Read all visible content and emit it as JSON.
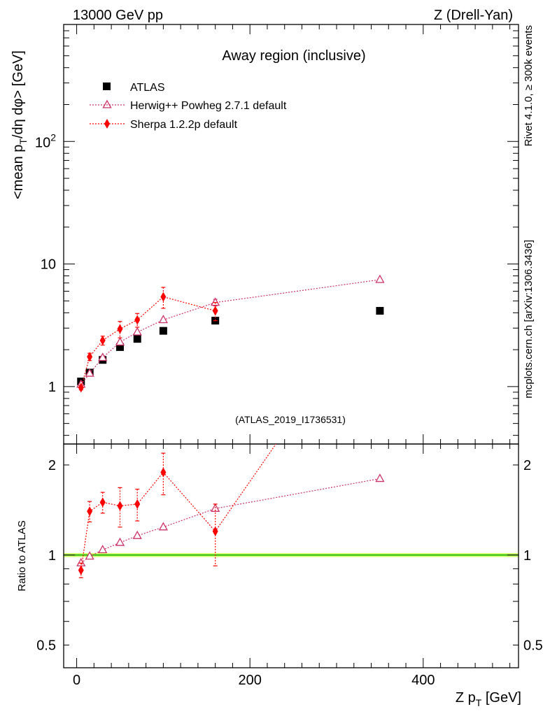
{
  "header": {
    "left": "13000 GeV pp",
    "right": "Z (Drell-Yan)"
  },
  "side_text": {
    "rivet": "Rivet 4.1.0, ≥ 300k events",
    "mcplots": "mcplots.cern.ch [arXiv:1306.3436]"
  },
  "colors": {
    "atlas": "#000000",
    "herwig": "#cc3366",
    "sherpa": "#ff0000",
    "ref_band": "#ccff66",
    "ref_line": "#00aa00",
    "label_gray": "#888888"
  },
  "chart_data": [
    {
      "id": "main",
      "type": "scatter",
      "title": "Away region (inclusive)",
      "watermark": "(ATLAS_2019_I1736531)",
      "ylabel": "<mean p_T/dη dφ> [GeV]",
      "yscale": "log",
      "xlim": [
        -15,
        510
      ],
      "ylim": [
        0.34,
        900
      ],
      "yticks": [
        {
          "value": 1,
          "label": "1"
        },
        {
          "value": 10,
          "label": "10"
        },
        {
          "value": 100,
          "label": "10^2"
        }
      ],
      "series": [
        {
          "name": "ATLAS",
          "marker": "square",
          "color": "#000000",
          "connect": false,
          "x": [
            5,
            15,
            30,
            50,
            70,
            100,
            160,
            350
          ],
          "y": [
            1.1,
            1.3,
            1.65,
            2.1,
            2.45,
            2.85,
            3.45,
            4.15
          ],
          "err": [
            0,
            0,
            0,
            0,
            0,
            0,
            0,
            0
          ]
        },
        {
          "name": "Herwig++ Powheg 2.7.1 default",
          "marker": "triangle",
          "color": "#cc3366",
          "connect": true,
          "x": [
            5,
            15,
            30,
            50,
            70,
            100,
            160,
            350
          ],
          "y": [
            1.04,
            1.28,
            1.72,
            2.3,
            2.78,
            3.5,
            4.85,
            7.45
          ],
          "err": [
            0,
            0,
            0,
            0,
            0,
            0,
            0.3,
            0
          ]
        },
        {
          "name": "Sherpa 1.2.2p default",
          "marker": "diamond",
          "color": "#ff0000",
          "connect": true,
          "x": [
            5,
            15,
            30,
            50,
            70,
            100,
            160
          ],
          "y": [
            0.98,
            1.75,
            2.38,
            2.95,
            3.5,
            5.4,
            4.15
          ],
          "err": [
            0.04,
            0.12,
            0.2,
            0.45,
            0.45,
            1.05,
            0.7
          ]
        }
      ]
    },
    {
      "id": "ratio",
      "type": "scatter",
      "ylabel": "Ratio to ATLAS",
      "xlabel": "Z p_T [GeV]",
      "yscale": "log",
      "xlim": [
        -15,
        510
      ],
      "ylim": [
        0.42,
        2.35
      ],
      "xticks": [
        {
          "value": 0,
          "label": "0"
        },
        {
          "value": 200,
          "label": "200"
        },
        {
          "value": 400,
          "label": "400"
        }
      ],
      "yticks": [
        {
          "value": 0.5,
          "label": "0.5"
        },
        {
          "value": 1,
          "label": "1"
        },
        {
          "value": 2,
          "label": "2"
        }
      ],
      "reference": {
        "value": 1.0,
        "band": [
          0.985,
          1.015
        ]
      },
      "series": [
        {
          "name": "Herwig++ Powheg 2.7.1 default",
          "marker": "triangle",
          "color": "#cc3366",
          "connect": true,
          "x": [
            5,
            15,
            30,
            50,
            70,
            100,
            160,
            350
          ],
          "y": [
            0.94,
            0.99,
            1.04,
            1.1,
            1.16,
            1.24,
            1.43,
            1.8
          ],
          "err": [
            0,
            0,
            0,
            0,
            0,
            0,
            0,
            0
          ]
        },
        {
          "name": "Sherpa 1.2.2p default",
          "marker": "diamond",
          "color": "#ff0000",
          "connect": true,
          "x": [
            5,
            15,
            30,
            50,
            70,
            100,
            160,
            230
          ],
          "y": [
            0.89,
            1.4,
            1.5,
            1.46,
            1.48,
            1.89,
            1.2,
            2.35
          ],
          "err": [
            0.05,
            0.11,
            0.12,
            0.22,
            0.18,
            0.3,
            0.28,
            0
          ],
          "hidden_markers": [
            7
          ]
        }
      ]
    }
  ]
}
